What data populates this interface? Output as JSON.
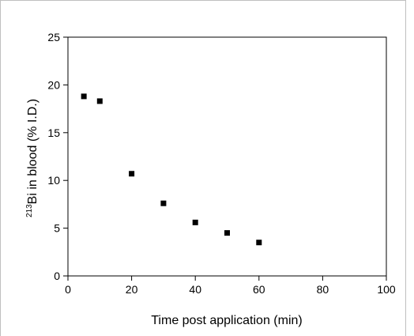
{
  "chart_data": {
    "type": "scatter",
    "title": "",
    "xlabel": "Time post application (min)",
    "ylabel": {
      "superscript": "213",
      "text": "Bi in blood (% I.D.)"
    },
    "xlim": [
      0,
      100
    ],
    "ylim": [
      0,
      25
    ],
    "xticks": [
      0,
      20,
      40,
      60,
      80,
      100
    ],
    "yticks": [
      0,
      5,
      10,
      15,
      20,
      25
    ],
    "grid": false,
    "legend": "none",
    "marker": "square",
    "marker_color": "#000000",
    "series": [
      {
        "x": [
          5,
          10,
          20,
          30,
          40,
          50,
          60
        ],
        "y": [
          18.8,
          18.3,
          10.7,
          7.6,
          5.6,
          4.5,
          3.5
        ]
      }
    ]
  }
}
